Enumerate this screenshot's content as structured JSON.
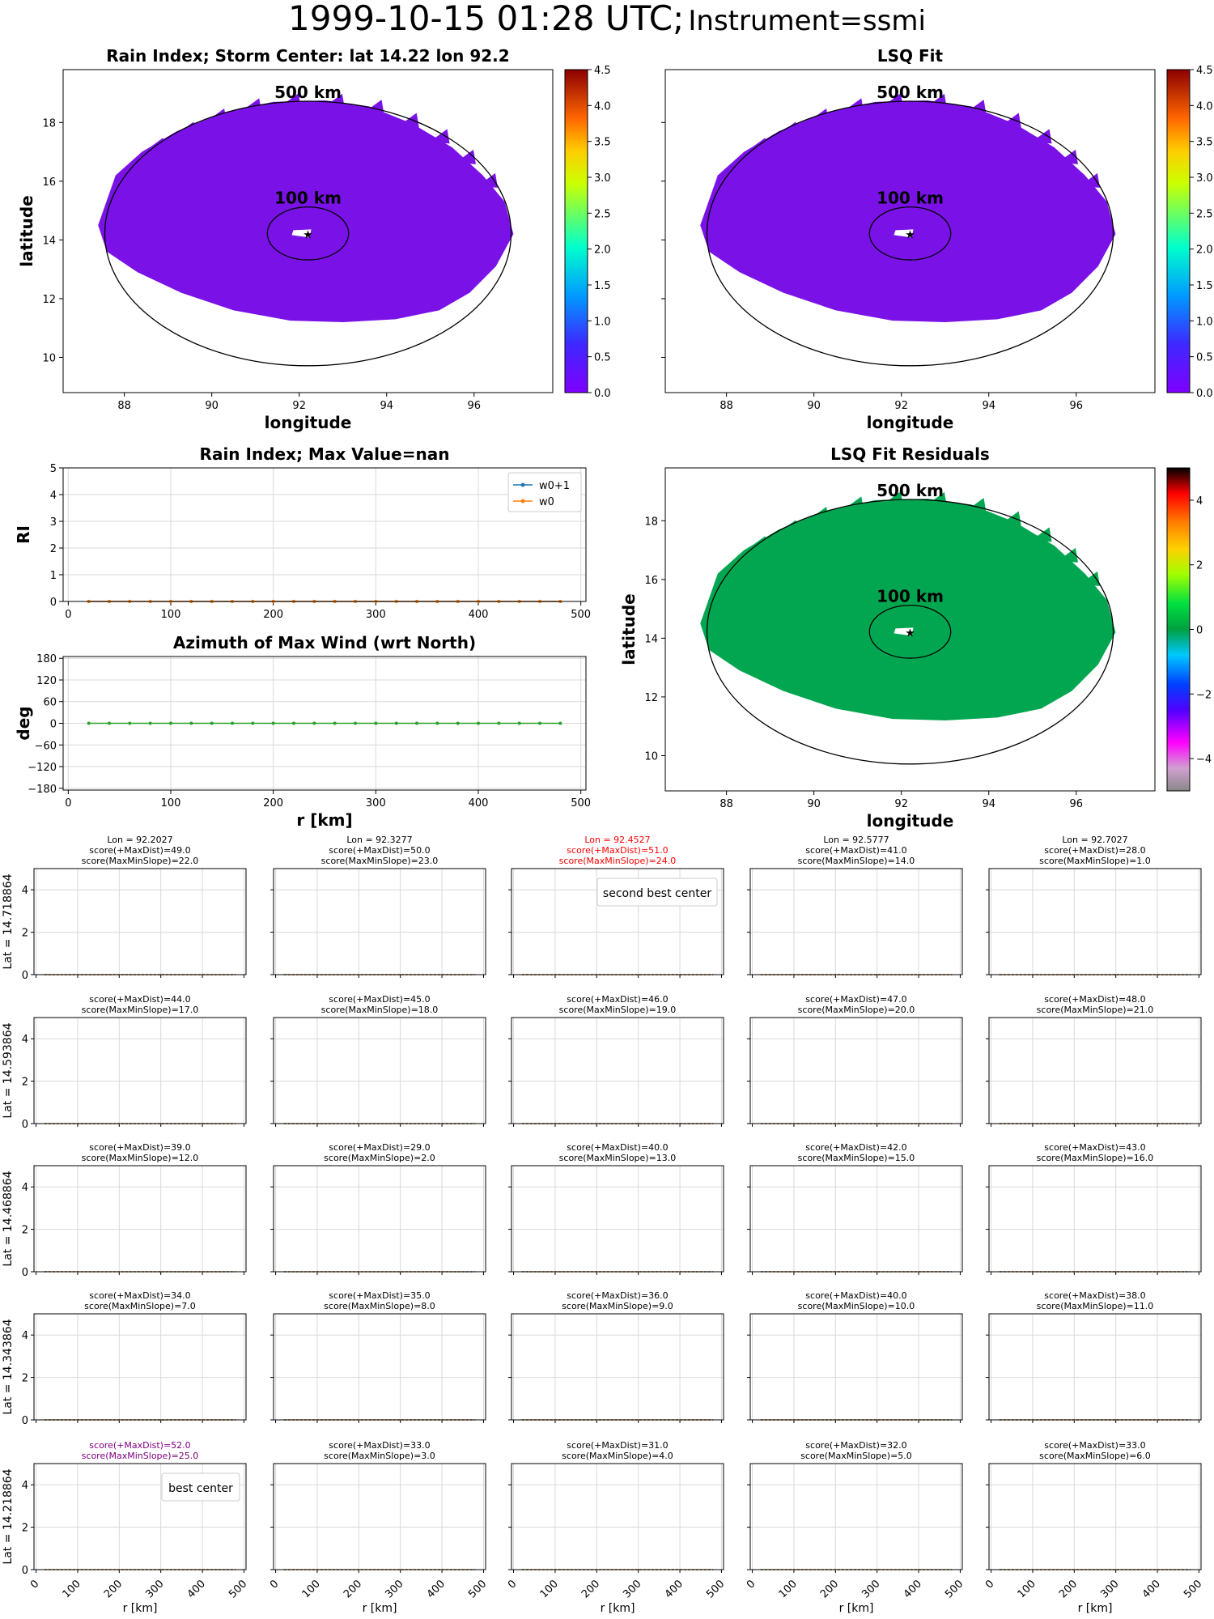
{
  "figure": {
    "title": "1999-10-15 01:28 UTC;",
    "subtitle": "Instrument=ssmi"
  },
  "chart_data": [
    {
      "id": "rain-index-map",
      "type": "heatmap",
      "title": "Rain Index; Storm Center: lat 14.22 lon 92.2",
      "xlabel": "longitude",
      "ylabel": "latitude",
      "xlim": [
        86.6,
        97.8
      ],
      "ylim": [
        8.8,
        19.8
      ],
      "xticks": [
        "88",
        "90",
        "92",
        "94",
        "96"
      ],
      "yticks": [
        "10",
        "12",
        "14",
        "16",
        "18"
      ],
      "field_color": "#7a12e8",
      "storm_center": {
        "lon": 92.2,
        "lat": 14.22
      },
      "rings": [
        {
          "label": "500 km",
          "radius_km": 500
        },
        {
          "label": "100 km",
          "radius_km": 100
        }
      ],
      "colorbar": {
        "range": [
          0.0,
          4.5
        ],
        "ticks": [
          "0.0",
          "0.5",
          "1.0",
          "1.5",
          "2.0",
          "2.5",
          "3.0",
          "3.5",
          "4.0",
          "4.5"
        ],
        "cmap": "rainbow"
      }
    },
    {
      "id": "lsq-fit-map",
      "type": "heatmap",
      "title": "LSQ Fit",
      "xlabel": "longitude",
      "ylabel": "",
      "xlim": [
        86.6,
        97.8
      ],
      "ylim": [
        8.8,
        19.8
      ],
      "xticks": [
        "88",
        "90",
        "92",
        "94",
        "96"
      ],
      "field_color": "#7a12e8",
      "storm_center": {
        "lon": 92.2,
        "lat": 14.22
      },
      "rings": [
        {
          "label": "500 km",
          "radius_km": 500
        },
        {
          "label": "100 km",
          "radius_km": 100
        }
      ],
      "colorbar": {
        "range": [
          0.0,
          4.5
        ],
        "ticks": [
          "0.0",
          "0.5",
          "1.0",
          "1.5",
          "2.0",
          "2.5",
          "3.0",
          "3.5",
          "4.0",
          "4.5"
        ],
        "cmap": "rainbow"
      }
    },
    {
      "id": "rain-index-profile",
      "type": "line",
      "title": "Rain Index; Max Value=nan",
      "xlabel": "",
      "ylabel": "RI",
      "xlim": [
        -5,
        505
      ],
      "ylim": [
        0,
        5
      ],
      "xticks": [
        "0",
        "100",
        "200",
        "300",
        "400",
        "500"
      ],
      "yticks": [
        "0",
        "1",
        "2",
        "3",
        "4",
        "5"
      ],
      "x": [
        20,
        40,
        60,
        80,
        100,
        120,
        140,
        160,
        180,
        200,
        220,
        240,
        260,
        280,
        300,
        320,
        340,
        360,
        380,
        400,
        420,
        440,
        460,
        480
      ],
      "series": [
        {
          "name": "w0+1",
          "color": "#1f77b4",
          "values": [
            0,
            0,
            0,
            0,
            0,
            0,
            0,
            0,
            0,
            0,
            0,
            0,
            0,
            0,
            0,
            0,
            0,
            0,
            0,
            0,
            0,
            0,
            0,
            0
          ]
        },
        {
          "name": "w0",
          "color": "#ff7f0e",
          "values": [
            0,
            0,
            0,
            0,
            0,
            0,
            0,
            0,
            0,
            0,
            0,
            0,
            0,
            0,
            0,
            0,
            0,
            0,
            0,
            0,
            0,
            0,
            0,
            0
          ]
        }
      ],
      "legend": "top-right",
      "grid": true
    },
    {
      "id": "azimuth-profile",
      "type": "line",
      "title": "Azimuth of Max Wind (wrt North)",
      "xlabel": "r [km]",
      "ylabel": "deg",
      "xlim": [
        -5,
        505
      ],
      "ylim": [
        -185,
        185
      ],
      "xticks": [
        "0",
        "100",
        "200",
        "300",
        "400",
        "500"
      ],
      "yticks": [
        "−180",
        "−120",
        "−60",
        "0",
        "60",
        "120",
        "180"
      ],
      "x": [
        20,
        40,
        60,
        80,
        100,
        120,
        140,
        160,
        180,
        200,
        220,
        240,
        260,
        280,
        300,
        320,
        340,
        360,
        380,
        400,
        420,
        440,
        460,
        480
      ],
      "series": [
        {
          "color": "#2ca02c",
          "values": [
            0,
            0,
            0,
            0,
            0,
            0,
            0,
            0,
            0,
            0,
            0,
            0,
            0,
            0,
            0,
            0,
            0,
            0,
            0,
            0,
            0,
            0,
            0,
            0
          ]
        }
      ],
      "grid": true
    },
    {
      "id": "lsq-residual-map",
      "type": "heatmap",
      "title": "LSQ Fit Residuals",
      "xlabel": "longitude",
      "ylabel": "latitude",
      "xlim": [
        86.6,
        97.8
      ],
      "ylim": [
        8.8,
        19.8
      ],
      "xticks": [
        "88",
        "90",
        "92",
        "94",
        "96"
      ],
      "yticks": [
        "10",
        "12",
        "14",
        "16",
        "18"
      ],
      "field_color": "#02a650",
      "storm_center": {
        "lon": 92.2,
        "lat": 14.22
      },
      "rings": [
        {
          "label": "500 km",
          "radius_km": 500
        },
        {
          "label": "100 km",
          "radius_km": 100
        }
      ],
      "colorbar": {
        "range": [
          -5,
          5
        ],
        "ticks": [
          "−4",
          "−2",
          "0",
          "2",
          "4"
        ],
        "cmap": "nipy_spectral"
      }
    },
    {
      "id": "center-search-grid",
      "type": "line",
      "xlabel": "r [km]",
      "ylim": [
        0,
        5
      ],
      "xlim": [
        -5,
        505
      ],
      "yticks": [
        "0",
        "2",
        "4"
      ],
      "xticks": [
        "0",
        "100",
        "200",
        "300",
        "400",
        "500"
      ],
      "row_labels": [
        "Lat = 14.718864",
        "Lat = 14.593864",
        "Lat = 14.468864",
        "Lat = 14.343864",
        "Lat = 14.218864"
      ],
      "col_labels": [
        "Lon = 92.2027",
        "Lon = 92.3277",
        "Lon = 92.4527",
        "Lon = 92.5777",
        "Lon = 92.7027"
      ],
      "highlight_colors": {
        "second": "#ff0000",
        "best": "#800080"
      },
      "series_colors": [
        "#1f77b4",
        "#ff7f0e"
      ],
      "x": [
        20,
        40,
        60,
        80,
        100,
        120,
        140,
        160,
        180,
        200,
        220,
        240,
        260,
        280,
        300,
        320,
        340,
        360,
        380,
        400,
        420,
        440,
        460,
        480
      ],
      "values": [
        0,
        0,
        0,
        0,
        0,
        0,
        0,
        0,
        0,
        0,
        0,
        0,
        0,
        0,
        0,
        0,
        0,
        0,
        0,
        0,
        0,
        0,
        0,
        0
      ],
      "panels": [
        [
          {
            "maxdist": "score(+MaxDist)=49.0",
            "maxmin": "score(MaxMinSlope)=22.0"
          },
          {
            "maxdist": "score(+MaxDist)=50.0",
            "maxmin": "score(MaxMinSlope)=23.0"
          },
          {
            "maxdist": "score(+MaxDist)=51.0",
            "maxmin": "score(MaxMinSlope)=24.0",
            "legend": "second best center",
            "highlight": "second"
          },
          {
            "maxdist": "score(+MaxDist)=41.0",
            "maxmin": "score(MaxMinSlope)=14.0"
          },
          {
            "maxdist": "score(+MaxDist)=28.0",
            "maxmin": "score(MaxMinSlope)=1.0"
          }
        ],
        [
          {
            "maxdist": "score(+MaxDist)=44.0",
            "maxmin": "score(MaxMinSlope)=17.0"
          },
          {
            "maxdist": "score(+MaxDist)=45.0",
            "maxmin": "score(MaxMinSlope)=18.0"
          },
          {
            "maxdist": "score(+MaxDist)=46.0",
            "maxmin": "score(MaxMinSlope)=19.0"
          },
          {
            "maxdist": "score(+MaxDist)=47.0",
            "maxmin": "score(MaxMinSlope)=20.0"
          },
          {
            "maxdist": "score(+MaxDist)=48.0",
            "maxmin": "score(MaxMinSlope)=21.0"
          }
        ],
        [
          {
            "maxdist": "score(+MaxDist)=39.0",
            "maxmin": "score(MaxMinSlope)=12.0"
          },
          {
            "maxdist": "score(+MaxDist)=29.0",
            "maxmin": "score(MaxMinSlope)=2.0"
          },
          {
            "maxdist": "score(+MaxDist)=40.0",
            "maxmin": "score(MaxMinSlope)=13.0"
          },
          {
            "maxdist": "score(+MaxDist)=42.0",
            "maxmin": "score(MaxMinSlope)=15.0"
          },
          {
            "maxdist": "score(+MaxDist)=43.0",
            "maxmin": "score(MaxMinSlope)=16.0"
          }
        ],
        [
          {
            "maxdist": "score(+MaxDist)=34.0",
            "maxmin": "score(MaxMinSlope)=7.0"
          },
          {
            "maxdist": "score(+MaxDist)=35.0",
            "maxmin": "score(MaxMinSlope)=8.0"
          },
          {
            "maxdist": "score(+MaxDist)=36.0",
            "maxmin": "score(MaxMinSlope)=9.0"
          },
          {
            "maxdist": "score(+MaxDist)=40.0",
            "maxmin": "score(MaxMinSlope)=10.0"
          },
          {
            "maxdist": "score(+MaxDist)=38.0",
            "maxmin": "score(MaxMinSlope)=11.0"
          }
        ],
        [
          {
            "maxdist": "score(+MaxDist)=52.0",
            "maxmin": "score(MaxMinSlope)=25.0",
            "legend": "best center",
            "highlight": "best"
          },
          {
            "maxdist": "score(+MaxDist)=33.0",
            "maxmin": "score(MaxMinSlope)=3.0"
          },
          {
            "maxdist": "score(+MaxDist)=31.0",
            "maxmin": "score(MaxMinSlope)=4.0"
          },
          {
            "maxdist": "score(+MaxDist)=32.0",
            "maxmin": "score(MaxMinSlope)=5.0"
          },
          {
            "maxdist": "score(+MaxDist)=33.0",
            "maxmin": "score(MaxMinSlope)=6.0"
          }
        ]
      ]
    }
  ]
}
